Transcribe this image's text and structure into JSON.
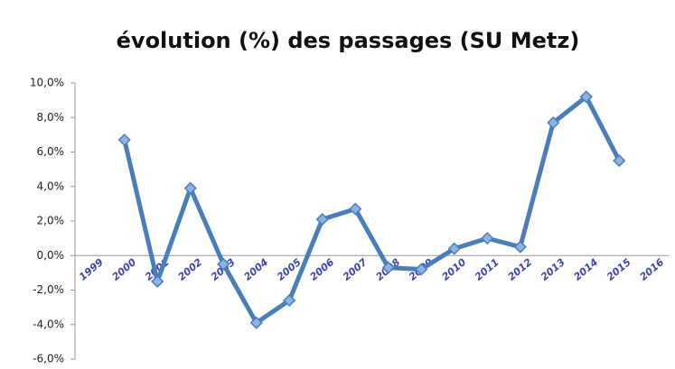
{
  "chart_data": {
    "type": "line",
    "title": "évolution (%) des passages (SU Metz)",
    "categories": [
      "1999",
      "2000",
      "2001",
      "2002",
      "2003",
      "2004",
      "2005",
      "2006",
      "2007",
      "2008",
      "2009",
      "2010",
      "2011",
      "2012",
      "2013",
      "2014",
      "2015",
      "2016"
    ],
    "series": [
      {
        "name": "évolution",
        "color": "#4a7ebb",
        "values": [
          null,
          6.7,
          -1.5,
          3.9,
          -0.5,
          -3.9,
          -2.6,
          2.1,
          2.7,
          -0.7,
          -0.8,
          0.4,
          1.0,
          0.5,
          7.7,
          9.2,
          5.5,
          null
        ]
      }
    ],
    "ylim": [
      -6,
      10
    ],
    "yticks": [
      {
        "value": -6,
        "label": "-6,0%"
      },
      {
        "value": -4,
        "label": "-4,0%"
      },
      {
        "value": -2,
        "label": "-2,0%"
      },
      {
        "value": 0,
        "label": "0,0%"
      },
      {
        "value": 2,
        "label": "2,0%"
      },
      {
        "value": 4,
        "label": "4,0%"
      },
      {
        "value": 6,
        "label": "6,0%"
      },
      {
        "value": 8,
        "label": "8,0%"
      },
      {
        "value": 10,
        "label": "10,0%"
      }
    ],
    "grid": false
  }
}
